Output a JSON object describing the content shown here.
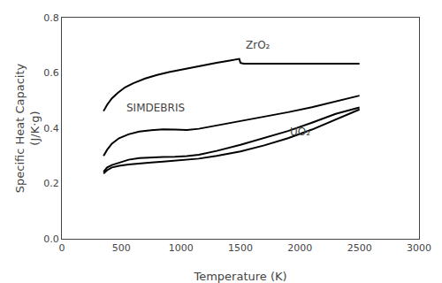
{
  "chart_data": {
    "type": "line",
    "xlabel": "Temperature (K)",
    "ylabel": "Specific Heat Capacity\n(J/K·g)",
    "xlim": [
      0,
      3000
    ],
    "ylim": [
      0,
      0.8
    ],
    "xticks": [
      0,
      500,
      1000,
      1500,
      2000,
      2500,
      3000
    ],
    "yticks": [
      {
        "value": 0,
        "label": "0.0"
      },
      0.2,
      0.4,
      0.6,
      0.8
    ],
    "grid": false,
    "series": [
      {
        "color": "#000000",
        "x": [
          350,
          380,
          420,
          470,
          530,
          600,
          700,
          800,
          900,
          1000,
          1100,
          1200,
          1300,
          1400,
          1460,
          1490,
          1500,
          1510,
          1530,
          1600,
          1800,
          2000,
          2200,
          2400,
          2500
        ],
        "values": [
          0.462,
          0.485,
          0.508,
          0.528,
          0.548,
          0.563,
          0.58,
          0.593,
          0.603,
          0.612,
          0.621,
          0.629,
          0.637,
          0.644,
          0.649,
          0.651,
          0.637,
          0.635,
          0.634,
          0.634,
          0.634,
          0.634,
          0.634,
          0.634,
          0.634
        ]
      },
      {
        "color": "#000000",
        "x": [
          350,
          380,
          420,
          480,
          560,
          650,
          750,
          850,
          950,
          1050,
          1150,
          1300,
          1500,
          1700,
          1900,
          2100,
          2300,
          2500
        ],
        "values": [
          0.3,
          0.322,
          0.344,
          0.364,
          0.378,
          0.388,
          0.393,
          0.396,
          0.395,
          0.394,
          0.398,
          0.41,
          0.425,
          0.442,
          0.458,
          0.476,
          0.498,
          0.518
        ]
      },
      {
        "color": "#000000",
        "x": [
          350,
          380,
          420,
          480,
          560,
          650,
          750,
          850,
          950,
          1050,
          1150,
          1300,
          1500,
          1700,
          1900,
          2100,
          2300,
          2500
        ],
        "values": [
          0.242,
          0.258,
          0.267,
          0.276,
          0.286,
          0.292,
          0.295,
          0.296,
          0.297,
          0.299,
          0.304,
          0.318,
          0.34,
          0.365,
          0.39,
          0.42,
          0.452,
          0.475
        ]
      },
      {
        "color": "#000000",
        "x": [
          350,
          380,
          420,
          480,
          560,
          650,
          750,
          850,
          950,
          1050,
          1150,
          1300,
          1500,
          1700,
          1900,
          2100,
          2300,
          2500
        ],
        "values": [
          0.236,
          0.248,
          0.258,
          0.264,
          0.269,
          0.273,
          0.276,
          0.279,
          0.282,
          0.285,
          0.29,
          0.3,
          0.316,
          0.338,
          0.364,
          0.395,
          0.432,
          0.468
        ]
      }
    ],
    "annotations": [
      {
        "text": "ZrO₂",
        "x": 1530,
        "y": 0.672
      },
      {
        "text": "SIMDEBRIS",
        "x": 530,
        "y": 0.445
      },
      {
        "text": "UO₂",
        "x": 1900,
        "y": 0.358
      }
    ]
  }
}
